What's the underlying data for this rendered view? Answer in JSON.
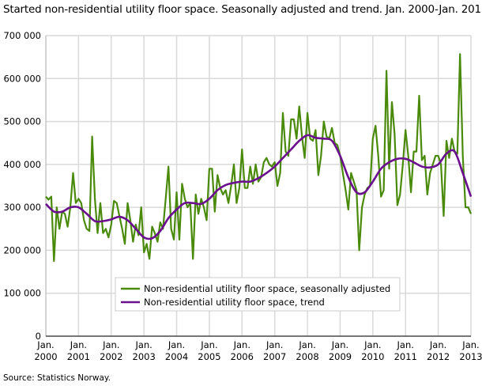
{
  "title": "Started non-residential utility floor space. Seasonally adjusted and trend. Jan. 2000-Jan. 2013",
  "source": "Source: Statistics Norway.",
  "chart_data": {
    "type": "line",
    "title": "Started non-residential utility floor space. Seasonally adjusted and trend. Jan. 2000-Jan. 2013",
    "ylim": [
      0,
      700000
    ],
    "yticks": [
      0,
      100000,
      200000,
      300000,
      400000,
      500000,
      600000,
      700000
    ],
    "ytick_labels": [
      "0",
      "100 000",
      "200 000",
      "300 000",
      "400 000",
      "500 000",
      "600 000",
      "700 000"
    ],
    "xtick_labels": [
      [
        "Jan.",
        "2000"
      ],
      [
        "Jan.",
        "2001"
      ],
      [
        "Jan.",
        "2002"
      ],
      [
        "Jan.",
        "2003"
      ],
      [
        "Jan.",
        "2004"
      ],
      [
        "Jan.",
        "2005"
      ],
      [
        "Jan.",
        "2006"
      ],
      [
        "Jan.",
        "2007"
      ],
      [
        "Jan.",
        "2008"
      ],
      [
        "Jan.",
        "2009"
      ],
      [
        "Jan.",
        "2010"
      ],
      [
        "Jan.",
        "2011"
      ],
      [
        "Jan.",
        "2012"
      ],
      [
        "Jan.",
        "2013"
      ]
    ],
    "grid": true,
    "legend_position": "bottom-center",
    "series": [
      {
        "name": "Non-residential utility floor space, seasonally adjusted",
        "color": "#4a8a0a",
        "frequency": "monthly",
        "start": "2000-01",
        "values": [
          325,
          318,
          325,
          175,
          300,
          250,
          290,
          285,
          255,
          300,
          380,
          310,
          320,
          310,
          270,
          250,
          245,
          465,
          320,
          240,
          310,
          240,
          250,
          230,
          260,
          315,
          310,
          280,
          250,
          215,
          310,
          270,
          220,
          260,
          235,
          300,
          195,
          215,
          180,
          255,
          240,
          220,
          265,
          250,
          320,
          395,
          250,
          225,
          335,
          225,
          355,
          320,
          300,
          310,
          180,
          330,
          285,
          320,
          300,
          270,
          390,
          390,
          290,
          375,
          345,
          330,
          340,
          310,
          350,
          400,
          310,
          345,
          435,
          345,
          345,
          395,
          355,
          400,
          360,
          370,
          405,
          415,
          400,
          395,
          405,
          350,
          380,
          520,
          430,
          420,
          505,
          505,
          460,
          535,
          465,
          415,
          520,
          460,
          455,
          480,
          375,
          420,
          500,
          465,
          460,
          485,
          450,
          445,
          420,
          380,
          340,
          295,
          380,
          360,
          340,
          200,
          300,
          330,
          345,
          350,
          460,
          490,
          420,
          325,
          340,
          618,
          390,
          545,
          470,
          305,
          330,
          400,
          480,
          420,
          335,
          430,
          430,
          560,
          410,
          420,
          330,
          380,
          400,
          420,
          420,
          400,
          280,
          455,
          415,
          460,
          430,
          425,
          657,
          420,
          300,
          300,
          285
        ]
      },
      {
        "name": "Non-residential utility floor space, trend",
        "color": "#6a0f8e",
        "frequency": "quarterly",
        "start": "2000-01",
        "values": [
          308,
          290,
          290,
          300,
          300,
          285,
          268,
          268,
          272,
          278,
          270,
          250,
          230,
          228,
          245,
          275,
          295,
          310,
          310,
          308,
          320,
          340,
          352,
          357,
          360,
          360,
          368,
          380,
          395,
          415,
          435,
          455,
          468,
          462,
          460,
          455,
          420,
          370,
          335,
          335,
          360,
          390,
          405,
          413,
          413,
          405,
          395,
          393,
          400,
          425,
          430,
          380,
          325
        ]
      }
    ],
    "value_unit_multiplier": 1000
  }
}
